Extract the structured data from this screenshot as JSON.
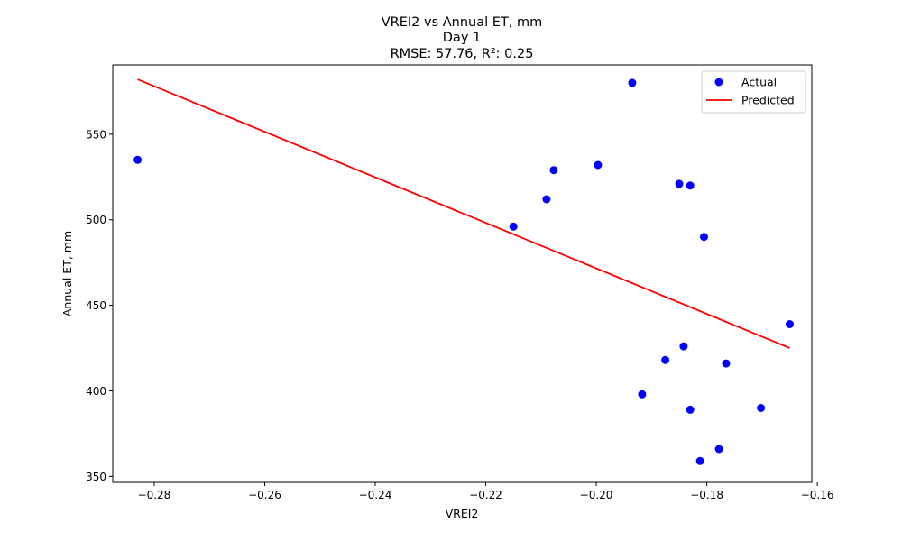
{
  "chart_data": {
    "type": "scatter",
    "title_lines": [
      "VREI2 vs Annual ET, mm",
      "Day 1",
      "RMSE: 57.76, R²: 0.25"
    ],
    "xlabel": "VREI2",
    "ylabel": "Annual ET, mm",
    "xlim": [
      -0.2875,
      -0.161
    ],
    "ylim": [
      346.5,
      590.5
    ],
    "xticks": [
      -0.28,
      -0.26,
      -0.24,
      -0.22,
      -0.2,
      -0.18,
      -0.16
    ],
    "xtick_labels": [
      "−0.28",
      "−0.26",
      "−0.24",
      "−0.22",
      "−0.20",
      "−0.18",
      "−0.16"
    ],
    "yticks": [
      350,
      400,
      450,
      500,
      550
    ],
    "ytick_labels": [
      "350",
      "400",
      "450",
      "500",
      "550"
    ],
    "grid": false,
    "legend_position": "top-right",
    "series": [
      {
        "name": "Actual",
        "kind": "scatter",
        "color": "#0000ff",
        "points": [
          {
            "x": -0.283,
            "y": 535
          },
          {
            "x": -0.215,
            "y": 496
          },
          {
            "x": -0.209,
            "y": 512
          },
          {
            "x": -0.2077,
            "y": 529
          },
          {
            "x": -0.1997,
            "y": 532
          },
          {
            "x": -0.1935,
            "y": 580
          },
          {
            "x": -0.1917,
            "y": 398
          },
          {
            "x": -0.1875,
            "y": 418
          },
          {
            "x": -0.185,
            "y": 521
          },
          {
            "x": -0.1842,
            "y": 426
          },
          {
            "x": -0.183,
            "y": 520
          },
          {
            "x": -0.183,
            "y": 389
          },
          {
            "x": -0.1812,
            "y": 359
          },
          {
            "x": -0.1805,
            "y": 490
          },
          {
            "x": -0.1778,
            "y": 366
          },
          {
            "x": -0.1765,
            "y": 416
          },
          {
            "x": -0.1702,
            "y": 390
          },
          {
            "x": -0.165,
            "y": 439
          }
        ]
      },
      {
        "name": "Predicted",
        "kind": "line",
        "color": "#ff0000",
        "points": [
          {
            "x": -0.283,
            "y": 582
          },
          {
            "x": -0.165,
            "y": 425
          }
        ]
      }
    ]
  }
}
